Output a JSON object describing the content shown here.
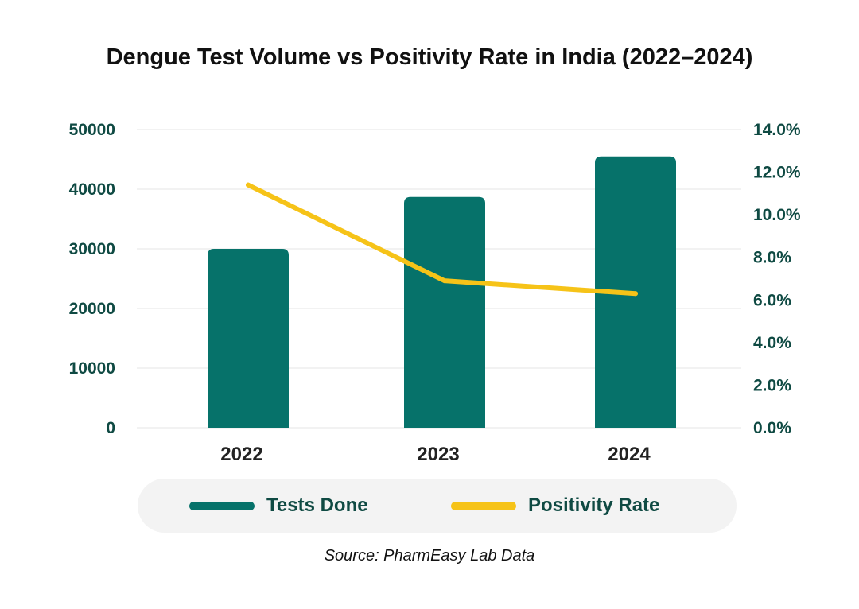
{
  "chart_data": {
    "type": "bar",
    "title": "Dengue Test Volume vs Positivity Rate in India (2022–2024)",
    "categories": [
      "2022",
      "2023",
      "2024"
    ],
    "series": [
      {
        "name": "Tests Done",
        "type": "bar",
        "axis": "left",
        "values": [
          30000,
          38700,
          45500
        ],
        "color": "#06726a"
      },
      {
        "name": "Positivity Rate",
        "type": "line",
        "axis": "right",
        "values": [
          11.4,
          6.9,
          6.3
        ],
        "color": "#f6c318"
      }
    ],
    "y_left": {
      "ylim": [
        0,
        50000
      ],
      "ticks": [
        "0",
        "10000",
        "20000",
        "30000",
        "40000",
        "50000"
      ]
    },
    "y_right": {
      "ylim": [
        0,
        14
      ],
      "ticks": [
        "0.0%",
        "2.0%",
        "4.0%",
        "6.0%",
        "8.0%",
        "10.0%",
        "12.0%",
        "14.0%"
      ]
    },
    "grid": true,
    "legend_position": "bottom",
    "source": "Source: PharmEasy Lab Data"
  }
}
